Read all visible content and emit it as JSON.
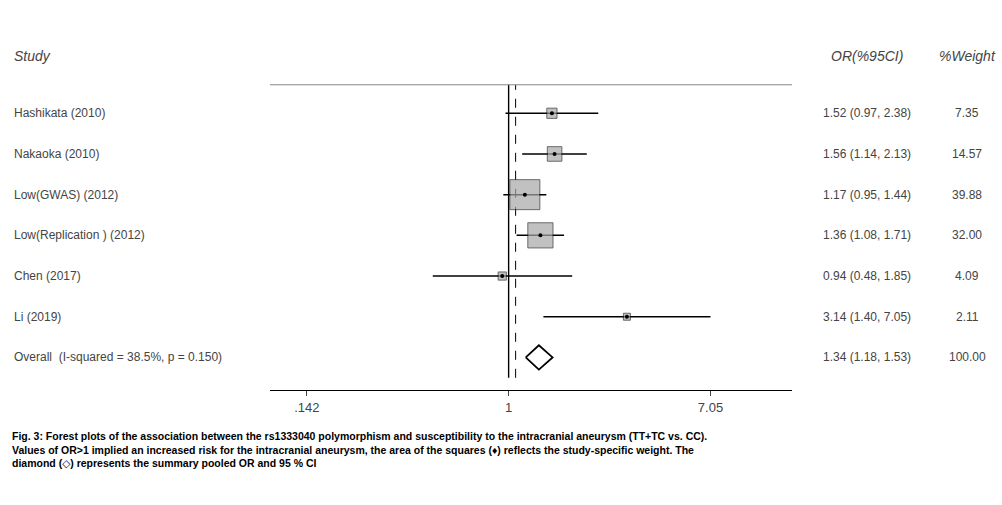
{
  "chart_data": {
    "type": "forest",
    "log": "x",
    "grid": false,
    "xlim": [
      0.0994,
      15.51
    ],
    "xticks": [
      {
        "value": 0.142,
        "label": ".142"
      },
      1,
      7.05
    ],
    "color": "#a8a8a8",
    "headers": [
      "Study",
      "OR(%95CI)",
      "%Weight"
    ],
    "studies": [
      {
        "name": "Hashikata (2010)",
        "value": 1.52,
        "ci_low": 0.97,
        "ci_high": 2.38,
        "weight": 7.35,
        "weight_label": "7.35",
        "label": "1.52 (0.97, 2.38)"
      },
      {
        "name": "Nakaoka (2010)",
        "value": 1.56,
        "ci_low": 1.14,
        "ci_high": 2.13,
        "weight": 14.57,
        "weight_label": "14.57",
        "label": "1.56 (1.14, 2.13)"
      },
      {
        "name": "Low(GWAS) (2012)",
        "value": 1.17,
        "ci_low": 0.95,
        "ci_high": 1.44,
        "weight": 39.88,
        "weight_label": "39.88",
        "label": "1.17 (0.95, 1.44)"
      },
      {
        "name": "Low(Replication ) (2012)",
        "value": 1.36,
        "ci_low": 1.08,
        "ci_high": 1.71,
        "weight": 32.0,
        "weight_label": "32.00",
        "label": "1.36 (1.08, 1.71)"
      },
      {
        "name": "Chen (2017)",
        "value": 0.94,
        "ci_low": 0.48,
        "ci_high": 1.85,
        "weight": 4.09,
        "weight_label": "4.09",
        "label": "0.94 (0.48, 1.85)"
      },
      {
        "name": "Li (2019)",
        "value": 3.14,
        "ci_low": 1.4,
        "ci_high": 7.05,
        "weight": 2.11,
        "weight_label": "2.11",
        "label": "3.14 (1.40, 7.05)"
      }
    ],
    "overall": {
      "name": "Overall  (I-squared = 38.5%, p = 0.150)",
      "value": 1.34,
      "ci_low": 1.18,
      "ci_high": 1.53,
      "weight": 100.0,
      "weight_label": "100.00",
      "label": "1.34 (1.18, 1.53)"
    },
    "reference_lines": [
      {
        "value": 1.0,
        "line_style": "solid"
      },
      {
        "value": 1.07,
        "line_style": "dashed"
      }
    ],
    "caption": [
      "Fig. 3: Forest plots of the association between the rs1333040 polymorphism and susceptibility to the intracranial aneurysm (TT+TC vs. CC).",
      "Values of OR>1 implied an increased risk for the intracranial aneurysm, the area of the squares (♦) reflects the study-specific weight. The",
      "diamond (◇) represents the summary pooled OR and 95 % CI"
    ]
  }
}
